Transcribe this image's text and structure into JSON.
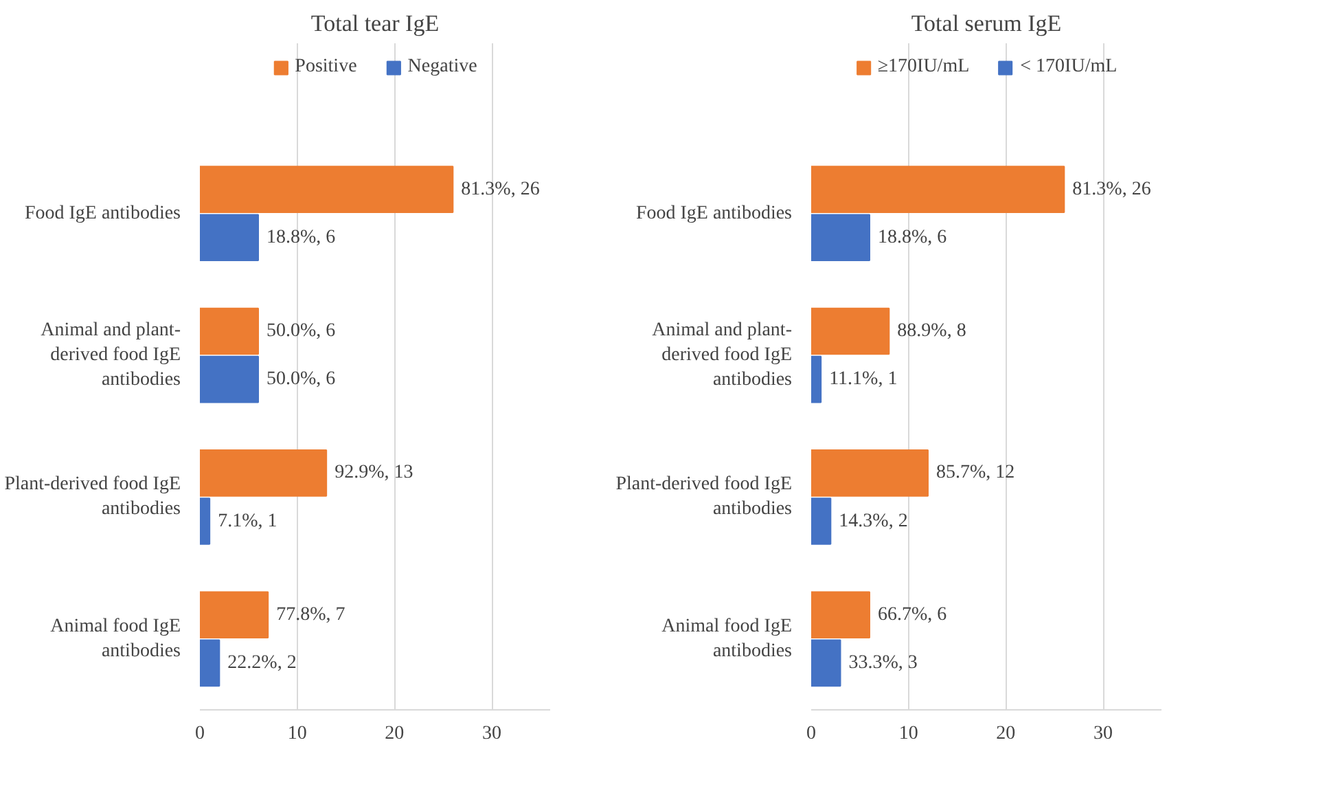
{
  "chart_data": [
    {
      "type": "bar",
      "orientation": "horizontal",
      "title": "Total tear IgE",
      "categories": [
        "Food IgE antibodies",
        "Animal and plant-derived food IgE antibodies",
        "Plant-derived food IgE antibodies",
        "Animal food IgE antibodies"
      ],
      "series": [
        {
          "name": "Positive",
          "color": "#ed7d31",
          "values": [
            26,
            6,
            13,
            7
          ],
          "value_labels": [
            "81.3%, 26",
            "50.0%, 6",
            "92.9%, 13",
            "77.8%, 7"
          ]
        },
        {
          "name": "Negative",
          "color": "#4472c4",
          "values": [
            6,
            6,
            1,
            2
          ],
          "value_labels": [
            "18.8%, 6",
            "50.0%, 6",
            "7.1%, 1",
            "22.2%, 2"
          ]
        }
      ],
      "xlim": [
        0,
        36
      ],
      "xticks": [
        0,
        10,
        20,
        30
      ],
      "grid": "x",
      "legend": "top"
    },
    {
      "type": "bar",
      "orientation": "horizontal",
      "title": "Total serum IgE",
      "categories": [
        "Food IgE antibodies",
        "Animal and plant-derived food IgE antibodies",
        "Plant-derived food IgE antibodies",
        "Animal food IgE antibodies"
      ],
      "series": [
        {
          "name": "≥170IU/mL",
          "color": "#ed7d31",
          "values": [
            26,
            8,
            12,
            6
          ],
          "value_labels": [
            "81.3%, 26",
            "88.9%, 8",
            "85.7%, 12",
            "66.7%, 6"
          ]
        },
        {
          "name": "< 170IU/mL",
          "color": "#4472c4",
          "values": [
            6,
            1,
            2,
            3
          ],
          "value_labels": [
            "18.8%, 6",
            "11.1%, 1",
            "14.3%, 2",
            "33.3%, 3"
          ]
        }
      ],
      "xlim": [
        0,
        36
      ],
      "xticks": [
        0,
        10,
        20,
        30
      ],
      "grid": "x",
      "legend": "top"
    }
  ]
}
